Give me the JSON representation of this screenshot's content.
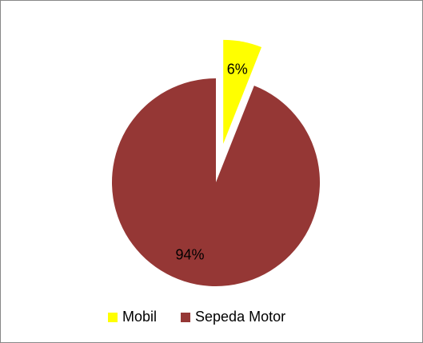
{
  "chart_data": {
    "type": "pie",
    "categories": [
      "Mobil",
      "Sepeda Motor"
    ],
    "values": [
      6,
      94
    ],
    "value_labels": [
      "6%",
      "94%"
    ],
    "colors": [
      "#ffff00",
      "#953735"
    ],
    "legend": "bottom"
  }
}
